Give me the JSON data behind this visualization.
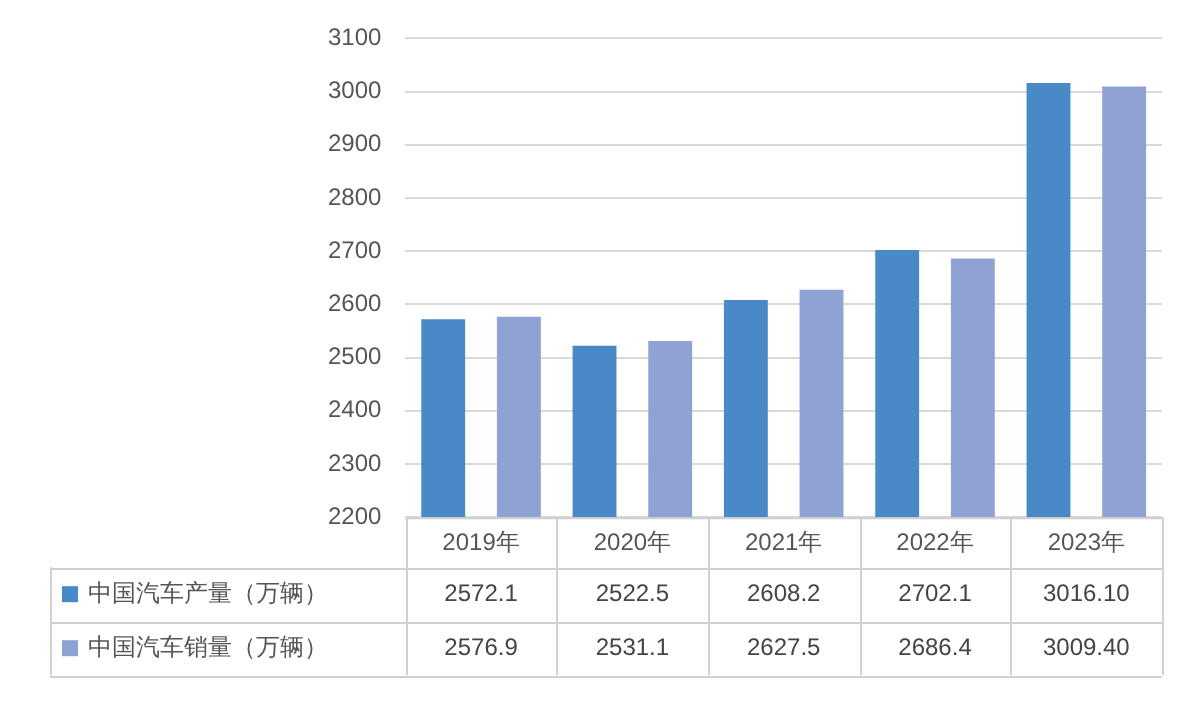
{
  "chart_data": {
    "type": "bar",
    "categories": [
      "2019年",
      "2020年",
      "2021年",
      "2022年",
      "2023年"
    ],
    "series": [
      {
        "name": "中国汽车产量（万辆）",
        "color": "#4a89c8",
        "values": [
          2572.1,
          2522.5,
          2608.2,
          2702.1,
          3016.1
        ],
        "value_labels": [
          "2572.1",
          "2522.5",
          "2608.2",
          "2702.1",
          "3016.10"
        ]
      },
      {
        "name": "中国汽车销量（万辆）",
        "color": "#8fa2d4",
        "values": [
          2576.9,
          2531.1,
          2627.5,
          2686.4,
          3009.4
        ],
        "value_labels": [
          "2576.9",
          "2531.1",
          "2627.5",
          "2686.4",
          "3009.40"
        ]
      }
    ],
    "ylim": [
      2200,
      3100
    ],
    "yticks": [
      2200,
      2300,
      2400,
      2500,
      2600,
      2700,
      2800,
      2900,
      3000,
      3100
    ],
    "grid": "y",
    "legend": "bottom"
  }
}
